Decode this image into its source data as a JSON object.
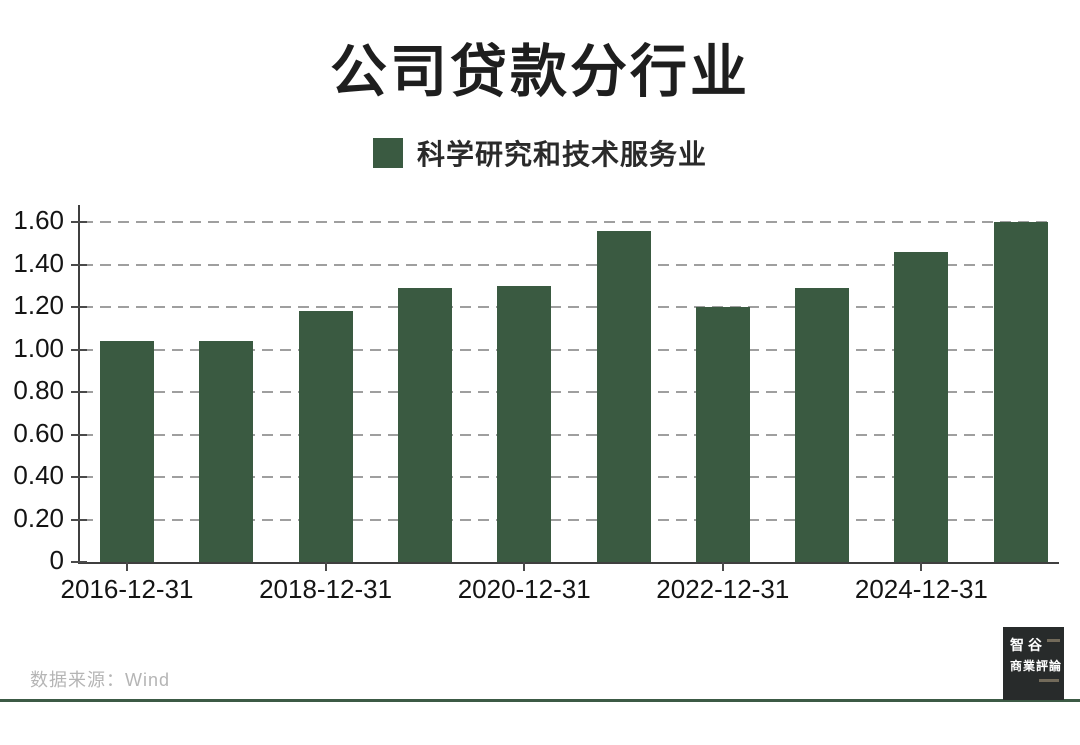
{
  "title": "公司贷款分行业",
  "legend": {
    "label": "科学研究和技术服务业",
    "swatch_color": "#3A5A41"
  },
  "footer": {
    "source_label": "数据来源：Wind"
  },
  "logo": {
    "line1": "智谷",
    "line2": "商業評論"
  },
  "colors": {
    "bar": "#3A5A41",
    "divider": "#3C5A45",
    "axis": "#3f3f3f",
    "grid": "#9f9f9f",
    "logo_bg": "#282B2B",
    "title_text": "#1e1e1e",
    "source_text": "#b5b5b5"
  },
  "chart_data": {
    "type": "bar",
    "title": "公司贷款分行业",
    "series_name": "科学研究和技术服务业",
    "bar_count": 10,
    "values": [
      1.04,
      1.04,
      1.18,
      1.29,
      1.3,
      1.56,
      1.2,
      1.29,
      1.46,
      1.6
    ],
    "x_tick_labels": [
      "2016-12-31",
      "2018-12-31",
      "2020-12-31",
      "2022-12-31",
      "2024-12-31"
    ],
    "x_tick_bar_indices": [
      0,
      2,
      4,
      6,
      8
    ],
    "y_ticks": [
      0,
      0.2,
      0.4,
      0.6,
      0.8,
      1.0,
      1.2,
      1.4,
      1.6
    ],
    "y_tick_labels": [
      "0",
      "0.20",
      "0.40",
      "0.60",
      "0.80",
      "1.00",
      "1.20",
      "1.40",
      "1.60"
    ],
    "ylim": [
      0,
      1.68
    ],
    "grid": "horizontal-dashed",
    "legend_position": "top-center",
    "xlabel": "",
    "ylabel": ""
  }
}
